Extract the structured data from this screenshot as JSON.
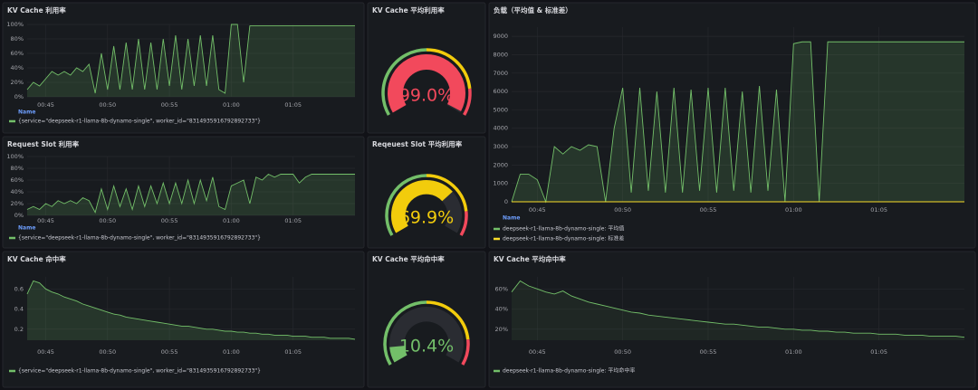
{
  "chart_data": [
    {
      "type": "area",
      "title": "KV Cache 利用率",
      "x": [
        43.5,
        44,
        44.5,
        45,
        45.5,
        46,
        46.5,
        47,
        47.5,
        48,
        48.5,
        49,
        49.5,
        50,
        50.5,
        51,
        51.5,
        52,
        52.5,
        53,
        53.5,
        54,
        54.5,
        55,
        55.5,
        56,
        56.5,
        57,
        57.5,
        58,
        58.5,
        59,
        59.5,
        60,
        60.5,
        61,
        61.5,
        62,
        62.5,
        63,
        63.5,
        64,
        64.5,
        65,
        65.5,
        66,
        66.5,
        67,
        67.5,
        68,
        68.5,
        69,
        69.5,
        70
      ],
      "series": [
        {
          "name": "{service=\"deepseek-r1-llama-8b-dynamo-single\", worker_id=\"8314935916792892733\"}",
          "color": "#73bf69",
          "values": [
            10,
            20,
            15,
            25,
            35,
            30,
            35,
            30,
            40,
            35,
            45,
            5,
            60,
            10,
            70,
            10,
            75,
            10,
            80,
            10,
            75,
            10,
            80,
            15,
            85,
            10,
            80,
            15,
            85,
            15,
            85,
            10,
            5,
            100,
            100,
            20,
            98,
            98,
            98,
            98,
            98,
            98,
            98,
            98,
            98,
            98,
            98,
            98,
            98,
            98,
            98,
            98,
            98,
            98
          ]
        }
      ],
      "xlim": [
        43.5,
        70
      ],
      "xticks": [
        {
          "value": 45,
          "label": "00:45"
        },
        {
          "value": 50,
          "label": "00:50"
        },
        {
          "value": 55,
          "label": "00:55"
        },
        {
          "value": 60,
          "label": "01:00"
        },
        {
          "value": 65,
          "label": "01:05"
        }
      ],
      "ylim": [
        0,
        100
      ],
      "yticks": [
        {
          "value": 0,
          "label": "0%"
        },
        {
          "value": 20,
          "label": "20%"
        },
        {
          "value": 40,
          "label": "40%"
        },
        {
          "value": 60,
          "label": "60%"
        },
        {
          "value": 80,
          "label": "80%"
        },
        {
          "value": 100,
          "label": "100%"
        }
      ],
      "grid": true,
      "legend_header": "Name"
    },
    {
      "type": "gauge",
      "title": "KV Cache 平均利用率",
      "values": [
        99
      ],
      "value_labels": [
        "99.0%"
      ],
      "ylim": [
        0,
        100
      ],
      "thresholds": [
        {
          "value": 0,
          "color": "#73bf69"
        },
        {
          "value": 50,
          "color": "#f2cc0c"
        },
        {
          "value": 85,
          "color": "#f2495c"
        }
      ]
    },
    {
      "type": "area",
      "title": "负载（平均值 & 标准差）",
      "x": [
        43.5,
        44,
        44.5,
        45,
        45.5,
        46,
        46.5,
        47,
        47.5,
        48,
        48.5,
        49,
        49.5,
        50,
        50.5,
        51,
        51.5,
        52,
        52.5,
        53,
        53.5,
        54,
        54.5,
        55,
        55.5,
        56,
        56.5,
        57,
        57.5,
        58,
        58.5,
        59,
        59.5,
        60,
        60.5,
        61,
        61.5,
        62,
        62.5,
        63,
        63.5,
        64,
        64.5,
        65,
        65.5,
        66,
        66.5,
        67,
        67.5,
        68,
        68.5,
        69,
        69.5,
        70
      ],
      "series": [
        {
          "name": "deepseek-r1-llama-8b-dynamo-single: 平均值",
          "color": "#73bf69",
          "values": [
            0,
            1500,
            1500,
            1200,
            0,
            3000,
            2600,
            3000,
            2800,
            3100,
            3000,
            0,
            4000,
            6200,
            500,
            6200,
            600,
            6000,
            500,
            6200,
            500,
            6100,
            600,
            6200,
            500,
            6200,
            600,
            6000,
            500,
            6300,
            600,
            6100,
            0,
            8600,
            8700,
            8700,
            0,
            8700,
            8700,
            8700,
            8700,
            8700,
            8700,
            8700,
            8700,
            8700,
            8700,
            8700,
            8700,
            8700,
            8700,
            8700,
            8700,
            8700
          ]
        },
        {
          "name": "deepseek-r1-llama-8b-dynamo-single: 标准差",
          "color": "#fade2a",
          "values": [
            0,
            0,
            0,
            0,
            0,
            0,
            0,
            0,
            0,
            0,
            0,
            0,
            0,
            0,
            0,
            0,
            0,
            0,
            0,
            0,
            0,
            0,
            0,
            0,
            0,
            0,
            0,
            0,
            0,
            0,
            0,
            0,
            0,
            0,
            0,
            0,
            0,
            0,
            0,
            0,
            0,
            0,
            0,
            0,
            0,
            0,
            0,
            0,
            0,
            0,
            0,
            0,
            0,
            0
          ]
        }
      ],
      "xlim": [
        43.5,
        70
      ],
      "xticks": [
        {
          "value": 45,
          "label": "00:45"
        },
        {
          "value": 50,
          "label": "00:50"
        },
        {
          "value": 55,
          "label": "00:55"
        },
        {
          "value": 60,
          "label": "01:00"
        },
        {
          "value": 65,
          "label": "01:05"
        }
      ],
      "ylim": [
        0,
        9500
      ],
      "yticks": [
        0,
        1000,
        2000,
        3000,
        4000,
        5000,
        6000,
        7000,
        8000,
        9000
      ],
      "grid": true,
      "legend_header": "Name"
    },
    {
      "type": "area",
      "title": "Request Slot 利用率",
      "x": [
        43.5,
        44,
        44.5,
        45,
        45.5,
        46,
        46.5,
        47,
        47.5,
        48,
        48.5,
        49,
        49.5,
        50,
        50.5,
        51,
        51.5,
        52,
        52.5,
        53,
        53.5,
        54,
        54.5,
        55,
        55.5,
        56,
        56.5,
        57,
        57.5,
        58,
        58.5,
        59,
        59.5,
        60,
        60.5,
        61,
        61.5,
        62,
        62.5,
        63,
        63.5,
        64,
        64.5,
        65,
        65.5,
        66,
        66.5,
        67,
        67.5,
        68,
        68.5,
        69,
        69.5,
        70
      ],
      "series": [
        {
          "name": "{service=\"deepseek-r1-llama-8b-dynamo-single\", worker_id=\"8314935916792892733\"}",
          "color": "#73bf69",
          "values": [
            10,
            15,
            10,
            20,
            15,
            25,
            20,
            25,
            20,
            30,
            25,
            5,
            45,
            10,
            50,
            15,
            45,
            10,
            50,
            15,
            50,
            20,
            55,
            20,
            55,
            20,
            60,
            20,
            60,
            25,
            65,
            15,
            10,
            50,
            55,
            60,
            20,
            65,
            60,
            70,
            65,
            70,
            70,
            70,
            55,
            65,
            70,
            70,
            70,
            70,
            70,
            70,
            70,
            70
          ]
        }
      ],
      "xlim": [
        43.5,
        70
      ],
      "xticks": [
        {
          "value": 45,
          "label": "00:45"
        },
        {
          "value": 50,
          "label": "00:50"
        },
        {
          "value": 55,
          "label": "00:55"
        },
        {
          "value": 60,
          "label": "01:00"
        },
        {
          "value": 65,
          "label": "01:05"
        }
      ],
      "ylim": [
        0,
        100
      ],
      "yticks": [
        {
          "value": 0,
          "label": "0%"
        },
        {
          "value": 20,
          "label": "20%"
        },
        {
          "value": 40,
          "label": "40%"
        },
        {
          "value": 60,
          "label": "60%"
        },
        {
          "value": 80,
          "label": "80%"
        },
        {
          "value": 100,
          "label": "100%"
        }
      ],
      "grid": true,
      "legend_header": "Name"
    },
    {
      "type": "gauge",
      "title": "Reqeuest Slot 平均利用率",
      "values": [
        69.9
      ],
      "value_labels": [
        "69.9%"
      ],
      "ylim": [
        0,
        100
      ],
      "thresholds": [
        {
          "value": 0,
          "color": "#73bf69"
        },
        {
          "value": 50,
          "color": "#f2cc0c"
        },
        {
          "value": 85,
          "color": "#f2495c"
        }
      ]
    },
    {
      "type": "area",
      "title": "KV Cache 命中率",
      "x": [
        43.5,
        44,
        44.5,
        45,
        45.5,
        46,
        46.5,
        47,
        47.5,
        48,
        48.5,
        49,
        49.5,
        50,
        50.5,
        51,
        51.5,
        52,
        52.5,
        53,
        53.5,
        54,
        54.5,
        55,
        55.5,
        56,
        56.5,
        57,
        57.5,
        58,
        58.5,
        59,
        59.5,
        60,
        60.5,
        61,
        61.5,
        62,
        62.5,
        63,
        63.5,
        64,
        64.5,
        65,
        65.5,
        66,
        66.5,
        67,
        67.5,
        68,
        68.5,
        69,
        69.5,
        70
      ],
      "series": [
        {
          "name": "{service=\"deepseek-r1-llama-8b-dynamo-single\", worker_id=\"8314935916792892733\"}",
          "color": "#73bf69",
          "values": [
            0.55,
            0.68,
            0.66,
            0.6,
            0.57,
            0.55,
            0.52,
            0.5,
            0.48,
            0.45,
            0.43,
            0.41,
            0.39,
            0.37,
            0.35,
            0.34,
            0.32,
            0.31,
            0.3,
            0.29,
            0.28,
            0.27,
            0.26,
            0.25,
            0.24,
            0.23,
            0.23,
            0.22,
            0.21,
            0.2,
            0.2,
            0.19,
            0.18,
            0.18,
            0.17,
            0.17,
            0.16,
            0.16,
            0.15,
            0.15,
            0.14,
            0.14,
            0.14,
            0.13,
            0.13,
            0.13,
            0.12,
            0.12,
            0.12,
            0.11,
            0.11,
            0.11,
            0.11,
            0.1
          ]
        }
      ],
      "xlim": [
        43.5,
        70
      ],
      "xticks": [
        {
          "value": 45,
          "label": "00:45"
        },
        {
          "value": 50,
          "label": "00:50"
        },
        {
          "value": 55,
          "label": "00:55"
        },
        {
          "value": 60,
          "label": "01:00"
        },
        {
          "value": 65,
          "label": "01:05"
        }
      ],
      "ylim": [
        0.09,
        0.72
      ],
      "yticks": [
        0.2,
        0.4,
        0.6
      ],
      "grid": true
    },
    {
      "type": "gauge",
      "title": "KV Cache 平均命中率",
      "values": [
        10.4
      ],
      "value_labels": [
        "10.4%"
      ],
      "ylim": [
        0,
        100
      ],
      "thresholds": [
        {
          "value": 0,
          "color": "#73bf69"
        },
        {
          "value": 50,
          "color": "#f2cc0c"
        },
        {
          "value": 85,
          "color": "#f2495c"
        }
      ]
    },
    {
      "type": "line",
      "title": "KV Cache 平均命中率",
      "x": [
        43.5,
        44,
        44.5,
        45,
        45.5,
        46,
        46.5,
        47,
        47.5,
        48,
        48.5,
        49,
        49.5,
        50,
        50.5,
        51,
        51.5,
        52,
        52.5,
        53,
        53.5,
        54,
        54.5,
        55,
        55.5,
        56,
        56.5,
        57,
        57.5,
        58,
        58.5,
        59,
        59.5,
        60,
        60.5,
        61,
        61.5,
        62,
        62.5,
        63,
        63.5,
        64,
        64.5,
        65,
        65.5,
        66,
        66.5,
        67,
        67.5,
        68,
        68.5,
        69,
        69.5,
        70
      ],
      "series": [
        {
          "name": "deepseek-r1-llama-8b-dynamo-single: 平均命中率",
          "color": "#73bf69",
          "values": [
            57,
            68,
            63,
            60,
            57,
            55,
            58,
            53,
            50,
            47,
            45,
            43,
            41,
            39,
            37,
            36,
            34,
            33,
            32,
            31,
            30,
            29,
            28,
            27,
            26,
            25,
            25,
            24,
            23,
            22,
            22,
            21,
            20,
            20,
            19,
            19,
            18,
            18,
            17,
            17,
            16,
            16,
            16,
            15,
            15,
            15,
            14,
            14,
            14,
            13,
            13,
            13,
            13,
            12
          ]
        }
      ],
      "xlim": [
        43.5,
        70
      ],
      "xticks": [
        {
          "value": 45,
          "label": "00:45"
        },
        {
          "value": 50,
          "label": "00:50"
        },
        {
          "value": 55,
          "label": "00:55"
        },
        {
          "value": 60,
          "label": "01:00"
        },
        {
          "value": 65,
          "label": "01:05"
        }
      ],
      "ylim": [
        9,
        72
      ],
      "yticks": [
        {
          "value": 20,
          "label": "20%"
        },
        {
          "value": 40,
          "label": "40%"
        },
        {
          "value": 60,
          "label": "60%"
        }
      ],
      "grid": true
    }
  ]
}
